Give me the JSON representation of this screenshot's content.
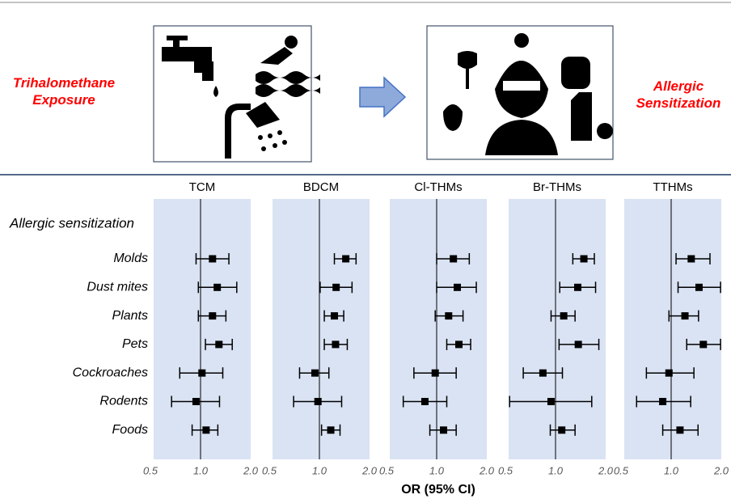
{
  "chart_data": {
    "type": "forest",
    "annotations": [
      "Trihalomethane Exposure",
      "Allergic Sensitization"
    ],
    "subtitle": "Allergic sensitization",
    "xlabel": "OR (95% CI)",
    "log_x": true,
    "xlim": [
      0.5,
      2.0
    ],
    "xticks": [
      0.5,
      {
        "value": 1,
        "label": "1.0"
      },
      {
        "value": 2,
        "label": "2.0"
      }
    ],
    "panel_color": "#dae3f3",
    "categories": [
      "Molds",
      "Dust mites",
      "Plants",
      "Pets",
      "Cockroaches",
      "Rodents",
      "Foods"
    ],
    "series": [
      {
        "name": "TCM",
        "color": "#000000",
        "values": [
          1.18,
          1.26,
          1.18,
          1.29,
          1.02,
          0.94,
          1.08
        ],
        "lower": [
          0.94,
          0.97,
          0.97,
          1.07,
          0.75,
          0.67,
          0.89
        ],
        "upper": [
          1.48,
          1.65,
          1.42,
          1.55,
          1.36,
          1.3,
          1.27
        ]
      },
      {
        "name": "BDCM",
        "color": "#000000",
        "values": [
          1.44,
          1.26,
          1.23,
          1.25,
          0.94,
          0.98,
          1.17
        ],
        "lower": [
          1.23,
          1.01,
          1.07,
          1.07,
          0.76,
          0.7,
          1.03
        ],
        "upper": [
          1.66,
          1.57,
          1.4,
          1.47,
          1.14,
          1.36,
          1.33
        ]
      },
      {
        "name": "Cl-THMs",
        "color": "#000000",
        "values": [
          1.26,
          1.33,
          1.18,
          1.36,
          0.98,
          0.85,
          1.1
        ],
        "lower": [
          1.0,
          1.0,
          0.98,
          1.15,
          0.73,
          0.63,
          0.91
        ],
        "upper": [
          1.57,
          1.73,
          1.44,
          1.6,
          1.31,
          1.15,
          1.31
        ]
      },
      {
        "name": "Br-THMs",
        "color": "#000000",
        "values": [
          1.48,
          1.36,
          1.12,
          1.37,
          0.84,
          0.94,
          1.09
        ],
        "lower": [
          1.27,
          1.06,
          0.94,
          1.05,
          0.64,
          0.53,
          0.93
        ],
        "upper": [
          1.71,
          1.74,
          1.31,
          1.82,
          1.1,
          1.65,
          1.31
        ]
      },
      {
        "name": "TTHMs",
        "color": "#000000",
        "values": [
          1.32,
          1.47,
          1.21,
          1.56,
          0.97,
          0.89,
          1.13
        ],
        "lower": [
          1.07,
          1.1,
          0.97,
          1.24,
          0.71,
          0.62,
          0.89
        ],
        "upper": [
          1.71,
          1.98,
          1.46,
          1.98,
          1.37,
          1.31,
          1.45
        ]
      }
    ]
  }
}
